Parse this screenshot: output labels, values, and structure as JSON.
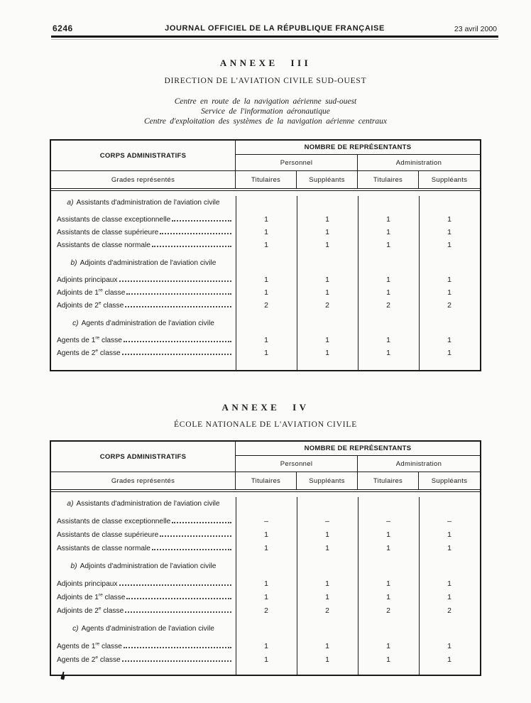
{
  "page_header": {
    "page_number": "6246",
    "journal_title": "JOURNAL OFFICIEL DE LA RÉPUBLIQUE FRANÇAISE",
    "date": "23 avril 2000"
  },
  "table_headers": {
    "corps": "CORPS ADMINISTRATIFS",
    "nombre": "NOMBRE DE REPRÉSENTANTS",
    "personnel": "Personnel",
    "administration": "Administration",
    "grades": "Grades représentés",
    "titulaires": "Titulaires",
    "suppleants": "Suppléants"
  },
  "annexe3": {
    "title": "ANNEXE III",
    "org_title": "DIRECTION DE L'AVIATION CIVILE SUD-OUEST",
    "subtitle_lines": [
      "Centre en route de la navigation aérienne sud-ouest",
      "Service de l'information aéronautique",
      "Centre d'exploitation des systèmes de la navigation aérienne centraux"
    ],
    "sections": [
      {
        "marker": "a)",
        "heading": "Assistants d'administration de l'aviation civile",
        "rows": [
          {
            "label": "Assistants de classe exceptionnelle",
            "sup": "",
            "label_end": "",
            "values": [
              "1",
              "1",
              "1",
              "1"
            ]
          },
          {
            "label": "Assistants de classe supérieure",
            "sup": "",
            "label_end": "",
            "values": [
              "1",
              "1",
              "1",
              "1"
            ]
          },
          {
            "label": "Assistants de classe normale",
            "sup": "",
            "label_end": "",
            "values": [
              "1",
              "1",
              "1",
              "1"
            ]
          }
        ]
      },
      {
        "marker": "b)",
        "heading": "Adjoints d'administration de l'aviation civile",
        "rows": [
          {
            "label": "Adjoints principaux",
            "sup": "",
            "label_end": "",
            "values": [
              "1",
              "1",
              "1",
              "1"
            ]
          },
          {
            "label": "Adjoints de 1",
            "sup": "re",
            "label_end": " classe",
            "values": [
              "1",
              "1",
              "1",
              "1"
            ]
          },
          {
            "label": "Adjoints de 2",
            "sup": "e",
            "label_end": " classe",
            "values": [
              "2",
              "2",
              "2",
              "2"
            ]
          }
        ]
      },
      {
        "marker": "c)",
        "heading": "Agents d'administration de l'aviation civile",
        "rows": [
          {
            "label": "Agents de 1",
            "sup": "re",
            "label_end": " classe",
            "values": [
              "1",
              "1",
              "1",
              "1"
            ]
          },
          {
            "label": "Agents de 2",
            "sup": "e",
            "label_end": " classe",
            "values": [
              "1",
              "1",
              "1",
              "1"
            ]
          }
        ]
      }
    ]
  },
  "annexe4": {
    "title": "ANNEXE IV",
    "org_title": "ÉCOLE NATIONALE DE L'AVIATION CIVILE",
    "sections": [
      {
        "marker": "a)",
        "heading": "Assistants d'administration de l'aviation civile",
        "rows": [
          {
            "label": "Assistants de classe exceptionnelle",
            "sup": "",
            "label_end": "",
            "values": [
              "–",
              "–",
              "–",
              "–"
            ]
          },
          {
            "label": "Assistants de classe supérieure",
            "sup": "",
            "label_end": "",
            "values": [
              "1",
              "1",
              "1",
              "1"
            ]
          },
          {
            "label": "Assistants de classe normale",
            "sup": "",
            "label_end": "",
            "values": [
              "1",
              "1",
              "1",
              "1"
            ]
          }
        ]
      },
      {
        "marker": "b)",
        "heading": "Adjoints d'administration de l'aviation civile",
        "rows": [
          {
            "label": "Adjoints principaux",
            "sup": "",
            "label_end": "",
            "values": [
              "1",
              "1",
              "1",
              "1"
            ]
          },
          {
            "label": "Adjoints de 1",
            "sup": "re",
            "label_end": " classe",
            "values": [
              "1",
              "1",
              "1",
              "1"
            ]
          },
          {
            "label": "Adjoints de 2",
            "sup": "e",
            "label_end": " classe",
            "values": [
              "2",
              "2",
              "2",
              "2"
            ]
          }
        ]
      },
      {
        "marker": "c)",
        "heading": "Agents d'administration de l'aviation civile",
        "rows": [
          {
            "label": "Agents de 1",
            "sup": "re",
            "label_end": " classe",
            "values": [
              "1",
              "1",
              "1",
              "1"
            ]
          },
          {
            "label": "Agents de 2",
            "sup": "e",
            "label_end": " classe",
            "values": [
              "1",
              "1",
              "1",
              "1"
            ]
          }
        ]
      }
    ]
  }
}
